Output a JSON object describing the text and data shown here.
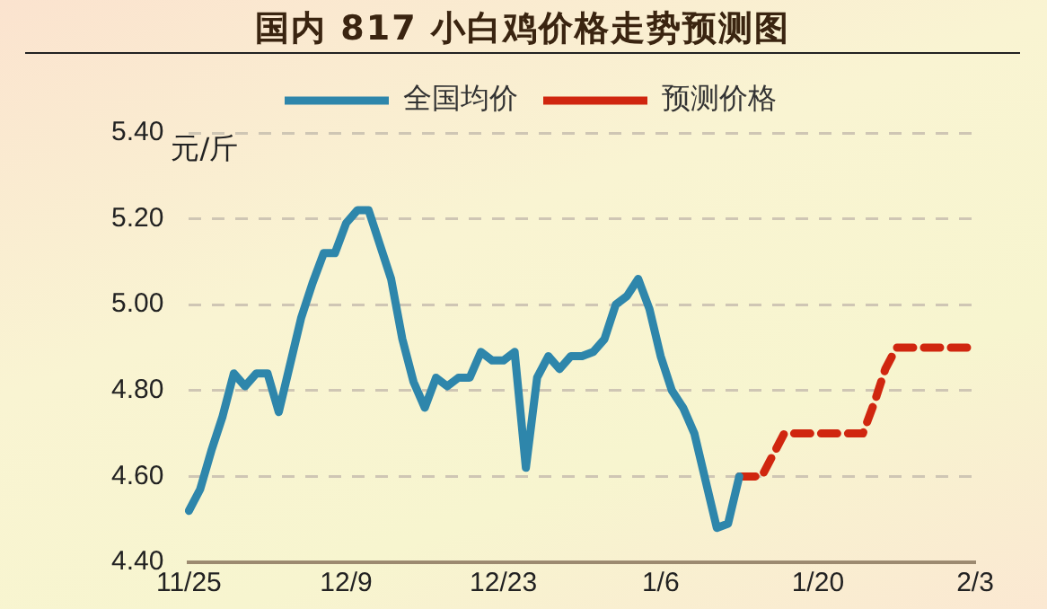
{
  "chart_data": {
    "type": "line",
    "title": "国内 817 小白鸡价格走势预测图",
    "ylabel": "元/斤",
    "categories": [
      "11/25",
      null,
      null,
      null,
      null,
      null,
      null,
      null,
      null,
      null,
      null,
      null,
      null,
      null,
      "12/9",
      null,
      null,
      null,
      null,
      null,
      null,
      null,
      null,
      null,
      null,
      null,
      null,
      null,
      "12/23",
      null,
      null,
      null,
      null,
      null,
      null,
      null,
      null,
      null,
      null,
      null,
      null,
      null,
      "1/6",
      null,
      null,
      null,
      null,
      null,
      null,
      null,
      null,
      null,
      null,
      null,
      null,
      null,
      "1/20",
      null,
      null,
      null,
      null,
      null,
      null,
      null,
      null,
      null,
      null,
      null,
      null,
      null,
      "2/3"
    ],
    "ylim": [
      4.4,
      5.4
    ],
    "yticks": [
      {
        "value": 4.4,
        "label": "4.40"
      },
      {
        "value": 4.6,
        "label": "4.60"
      },
      {
        "value": 4.8,
        "label": "4.80"
      },
      {
        "value": 5.0,
        "label": "5.00"
      },
      {
        "value": 5.2,
        "label": "5.20"
      },
      {
        "value": 5.4,
        "label": "5.40"
      }
    ],
    "grid": "y",
    "legend": "top",
    "marker": "none",
    "series": [
      {
        "name": "全国均价",
        "color": "#2e86ab",
        "line_style": "solid",
        "values": [
          4.52,
          4.57,
          4.66,
          4.74,
          4.84,
          4.81,
          4.84,
          4.84,
          4.75,
          4.86,
          4.97,
          5.05,
          5.12,
          5.12,
          5.19,
          5.22,
          5.22,
          5.14,
          5.06,
          4.92,
          4.82,
          4.76,
          4.83,
          4.81,
          4.83,
          4.83,
          4.89,
          4.87,
          4.87,
          4.89,
          4.62,
          4.83,
          4.88,
          4.85,
          4.88,
          4.88,
          4.89,
          4.92,
          5.0,
          5.02,
          5.06,
          4.99,
          4.88,
          4.8,
          4.76,
          4.7,
          4.59,
          4.48,
          4.49,
          4.6,
          null,
          null,
          null,
          null,
          null,
          null,
          null,
          null,
          null,
          null,
          null,
          null,
          null,
          null,
          null,
          null,
          null,
          null,
          null,
          null,
          null
        ]
      },
      {
        "name": "预测价格",
        "color": "#d0260f",
        "line_style": "dashed",
        "values": [
          null,
          null,
          null,
          null,
          null,
          null,
          null,
          null,
          null,
          null,
          null,
          null,
          null,
          null,
          null,
          null,
          null,
          null,
          null,
          null,
          null,
          null,
          null,
          null,
          null,
          null,
          null,
          null,
          null,
          null,
          null,
          null,
          null,
          null,
          null,
          null,
          null,
          null,
          null,
          null,
          null,
          null,
          null,
          null,
          null,
          null,
          null,
          null,
          null,
          4.6,
          4.6,
          4.6,
          4.65,
          4.7,
          4.7,
          4.7,
          4.7,
          4.7,
          4.7,
          4.7,
          4.7,
          4.77,
          4.85,
          4.9,
          4.9,
          4.9,
          4.9,
          4.9,
          4.9,
          4.9,
          4.9
        ]
      }
    ]
  }
}
